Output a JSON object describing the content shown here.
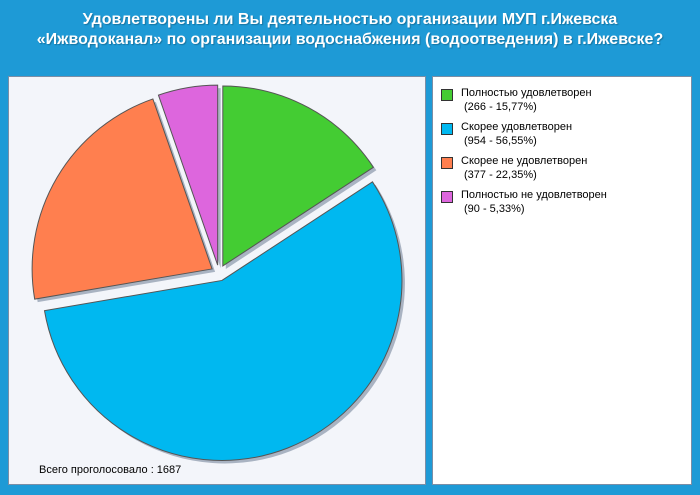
{
  "title": "Удовлетворены ли Вы деятельностью организации МУП г.Ижевска «Ижводоканал» по организации водоснабжения (водоотведения) в г.Ижевске?",
  "total_label": "Всего проголосовало : 1687",
  "colors": {
    "background": "#1e9ad6"
  },
  "chart_data": {
    "type": "pie",
    "title": "Удовлетворены ли Вы деятельностью организации МУП г.Ижевска «Ижводоканал» по организации водоснабжения (водоотведения) в г.Ижевске?",
    "legend_position": "right",
    "total": 1687,
    "slices": [
      {
        "name": "Полностью удовлетворен",
        "value": 266,
        "percent": 15.77,
        "label": "(266 - 15,77%)",
        "color": "#44cc33"
      },
      {
        "name": "Скорее удовлетворен",
        "value": 954,
        "percent": 56.55,
        "label": "(954 - 56,55%)",
        "color": "#00b8f0"
      },
      {
        "name": "Скорее не удовлетворен",
        "value": 377,
        "percent": 22.35,
        "label": "(377 - 22,35%)",
        "color": "#ff7f4f"
      },
      {
        "name": "Полностью не удовлетворен",
        "value": 90,
        "percent": 5.33,
        "label": "(90 - 5,33%)",
        "color": "#dd66dd"
      }
    ]
  }
}
